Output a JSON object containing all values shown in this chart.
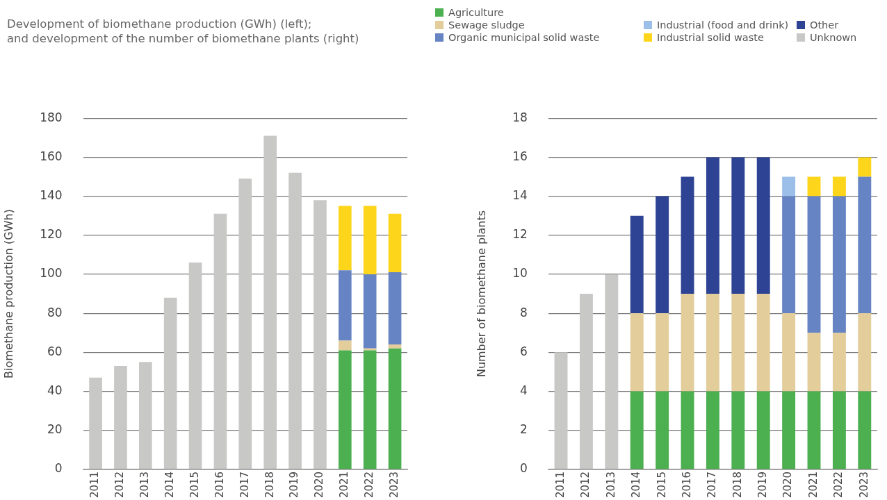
{
  "chart_data": [
    {
      "type": "bar",
      "subtitle": "Development of biomethane production (GWh) (left);\nand development of the number of biomethane plants (right)",
      "ylabel": "Biomethane production (GWh)",
      "stacked": true,
      "grid": "y",
      "legend": "top right",
      "ylim": [
        0,
        180
      ],
      "yticks": [
        0,
        20,
        40,
        60,
        80,
        100,
        120,
        140,
        160,
        180
      ],
      "categories": [
        "2011",
        "2012",
        "2013",
        "2014",
        "2015",
        "2016",
        "2017",
        "2018",
        "2019",
        "2020",
        "2021",
        "2022",
        "2023"
      ],
      "series": [
        {
          "name": "Agriculture",
          "color": "#4caf50",
          "values": [
            null,
            null,
            null,
            null,
            null,
            null,
            null,
            null,
            null,
            null,
            61,
            61,
            62
          ]
        },
        {
          "name": "Sewage sludge",
          "color": "#e2cd9b",
          "values": [
            null,
            null,
            null,
            null,
            null,
            null,
            null,
            null,
            null,
            null,
            5,
            1,
            2
          ]
        },
        {
          "name": "Organic municipal solid waste",
          "color": "#6683c3",
          "values": [
            null,
            null,
            null,
            null,
            null,
            null,
            null,
            null,
            null,
            null,
            36,
            38,
            37
          ]
        },
        {
          "name": "Industrial solid waste",
          "color": "#fdd51a",
          "values": [
            null,
            null,
            null,
            null,
            null,
            null,
            null,
            null,
            null,
            null,
            33,
            35,
            30
          ]
        },
        {
          "name": "Unknown",
          "color": "#c8c8c7",
          "values": [
            47,
            53,
            55,
            88,
            106,
            131,
            149,
            171,
            152,
            138,
            null,
            null,
            null
          ]
        }
      ]
    },
    {
      "type": "bar",
      "ylabel": "Number of biomethane plants",
      "stacked": true,
      "grid": "y",
      "legend": "top right",
      "ylim": [
        0,
        18
      ],
      "yticks": [
        0,
        2,
        4,
        6,
        8,
        10,
        12,
        14,
        16,
        18
      ],
      "categories": [
        "2011",
        "2012",
        "2013",
        "2014",
        "2015",
        "2016",
        "2017",
        "2018",
        "2019",
        "2020",
        "2021",
        "2022",
        "2023"
      ],
      "series": [
        {
          "name": "Agriculture",
          "color": "#4caf50",
          "values": [
            null,
            null,
            null,
            4,
            4,
            4,
            4,
            4,
            4,
            4,
            4,
            4,
            4
          ]
        },
        {
          "name": "Sewage sludge",
          "color": "#e2cd9b",
          "values": [
            null,
            null,
            null,
            4,
            4,
            5,
            5,
            5,
            5,
            4,
            3,
            3,
            4
          ]
        },
        {
          "name": "Organic municipal solid waste",
          "color": "#6683c3",
          "values": [
            null,
            null,
            null,
            null,
            null,
            null,
            null,
            null,
            null,
            6,
            7,
            7,
            7
          ]
        },
        {
          "name": "Industrial (food and drink)",
          "color": "#9bbfe8",
          "values": [
            null,
            null,
            null,
            null,
            null,
            null,
            null,
            null,
            null,
            1,
            null,
            null,
            null
          ]
        },
        {
          "name": "Industrial solid waste",
          "color": "#fdd51a",
          "values": [
            null,
            null,
            null,
            null,
            null,
            null,
            null,
            null,
            null,
            null,
            1,
            1,
            1
          ]
        },
        {
          "name": "Other",
          "color": "#2e4394",
          "values": [
            null,
            null,
            null,
            5,
            6,
            6,
            7,
            7,
            7,
            null,
            null,
            null,
            null
          ]
        },
        {
          "name": "Unknown",
          "color": "#c8c8c7",
          "values": [
            6,
            9,
            10,
            null,
            null,
            null,
            null,
            null,
            null,
            null,
            null,
            null,
            null
          ]
        }
      ]
    }
  ]
}
